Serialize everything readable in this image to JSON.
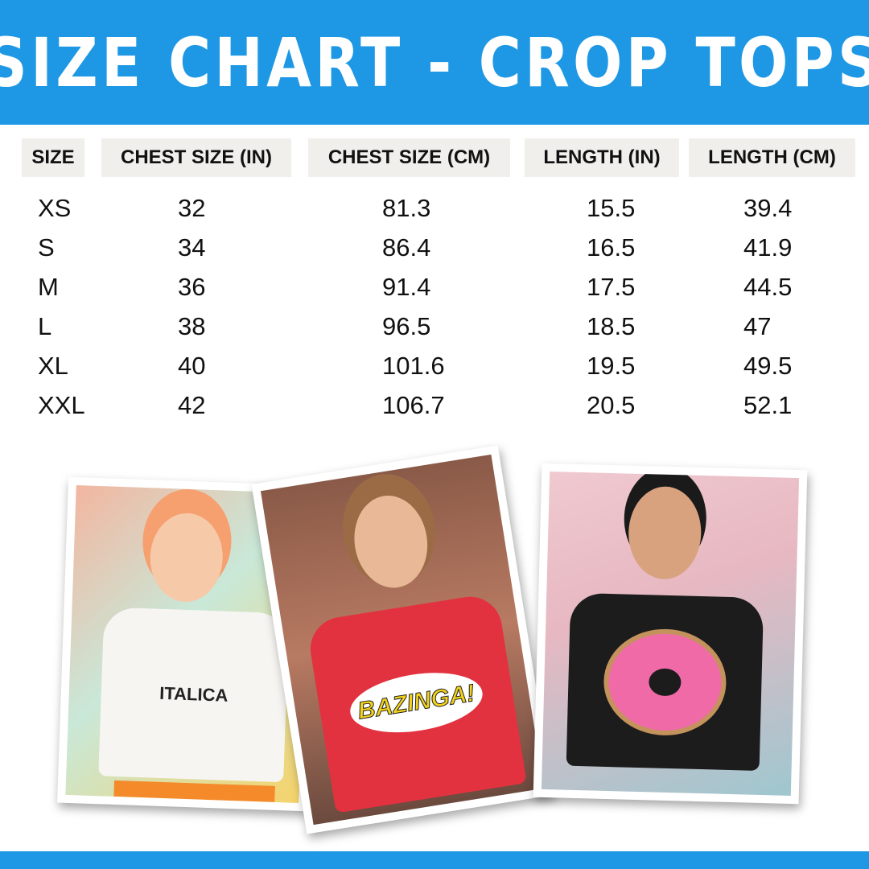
{
  "title": "SIZE CHART - CROP TOPS",
  "table": {
    "headers": [
      "SIZE",
      "CHEST SIZE (IN)",
      "CHEST SIZE (CM)",
      "LENGTH (IN)",
      "LENGTH (CM)"
    ],
    "rows": [
      [
        "XS",
        "32",
        "81.3",
        "15.5",
        "39.4"
      ],
      [
        "S",
        "34",
        "86.4",
        "16.5",
        "41.9"
      ],
      [
        "M",
        "36",
        "91.4",
        "17.5",
        "44.5"
      ],
      [
        "L",
        "38",
        "96.5",
        "18.5",
        "47"
      ],
      [
        "XL",
        "40",
        "101.6",
        "19.5",
        "49.5"
      ],
      [
        "XXL",
        "42",
        "106.7",
        "20.5",
        "52.1"
      ]
    ]
  },
  "photos": [
    {
      "shirt_print": "ITALICA",
      "shirt_color": "#f7f5f2"
    },
    {
      "shirt_print": "BAZINGA!",
      "shirt_color": "#e2323f"
    },
    {
      "shirt_print": "",
      "shirt_color": "#1c1c1c"
    }
  ],
  "colors": {
    "brand_blue": "#1e98e4",
    "header_cell_bg": "#f0efeb"
  }
}
